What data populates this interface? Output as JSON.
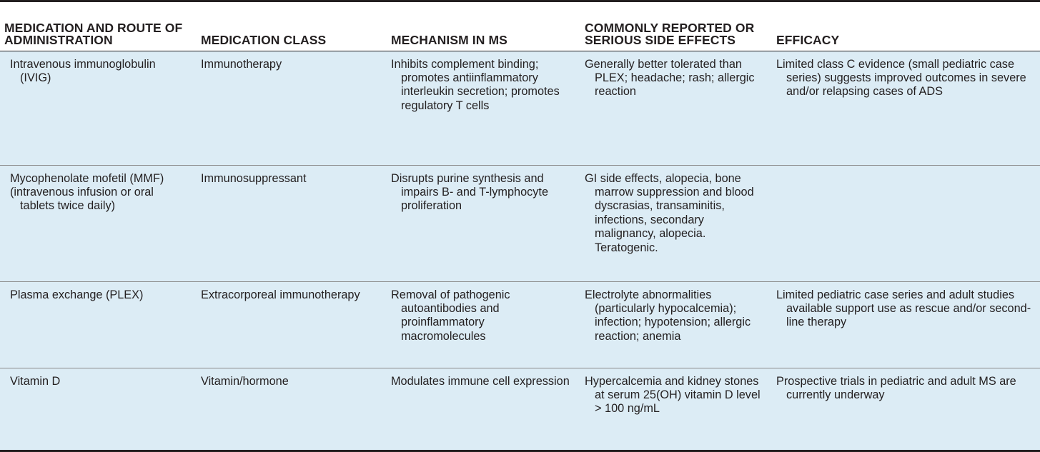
{
  "table": {
    "headers": [
      "MEDICATION AND ROUTE OF ADMINISTRATION",
      "MEDICATION CLASS",
      "MECHANISM IN MS",
      "COMMONLY REPORTED OR SERIOUS SIDE EFFECTS",
      "EFFICACY"
    ],
    "rows": [
      {
        "medication": "Intravenous immunoglobulin (IVIG)",
        "class": "Immunotherapy",
        "mechanism": "Inhibits complement binding; promotes antiinflammatory interleukin secretion; promotes regulatory T cells",
        "side_effects": "Generally better tolerated than PLEX; headache; rash; allergic reaction",
        "efficacy": "Limited class C evidence (small pediatric case series) suggests improved outcomes in severe and/or relapsing cases of ADS"
      },
      {
        "medication": "Mycophenolate mofetil (MMF)",
        "medication_route": "(intravenous infusion or oral tablets twice daily)",
        "class": "Immunosuppressant",
        "mechanism": "Disrupts purine synthesis and impairs B- and T-lymphocyte proliferation",
        "side_effects": "GI side effects, alopecia, bone marrow suppression and blood dyscrasias, transaminitis, infections, secondary malignancy, alopecia. Teratogenic.",
        "efficacy": ""
      },
      {
        "medication": "Plasma exchange (PLEX)",
        "class": "Extracorporeal immunotherapy",
        "mechanism": "Removal of pathogenic autoantibodies and proinflammatory macromolecules",
        "side_effects": "Electrolyte abnormalities (particularly hypocalcemia); infection; hypotension; allergic reaction; anemia",
        "efficacy": "Limited pediatric case series and adult studies available support use as rescue and/or second-line therapy"
      },
      {
        "medication": "Vitamin D",
        "class": "Vitamin/hormone",
        "mechanism": "Modulates immune cell expression",
        "side_effects": "Hypercalcemia and kidney stones at serum 25(OH) vitamin D level > 100 ng/mL",
        "efficacy": "Prospective trials in pediatric and adult MS are currently underway"
      }
    ]
  },
  "colors": {
    "row_background": "#dcecf5",
    "text": "#231f20",
    "rule": "#231f20"
  }
}
